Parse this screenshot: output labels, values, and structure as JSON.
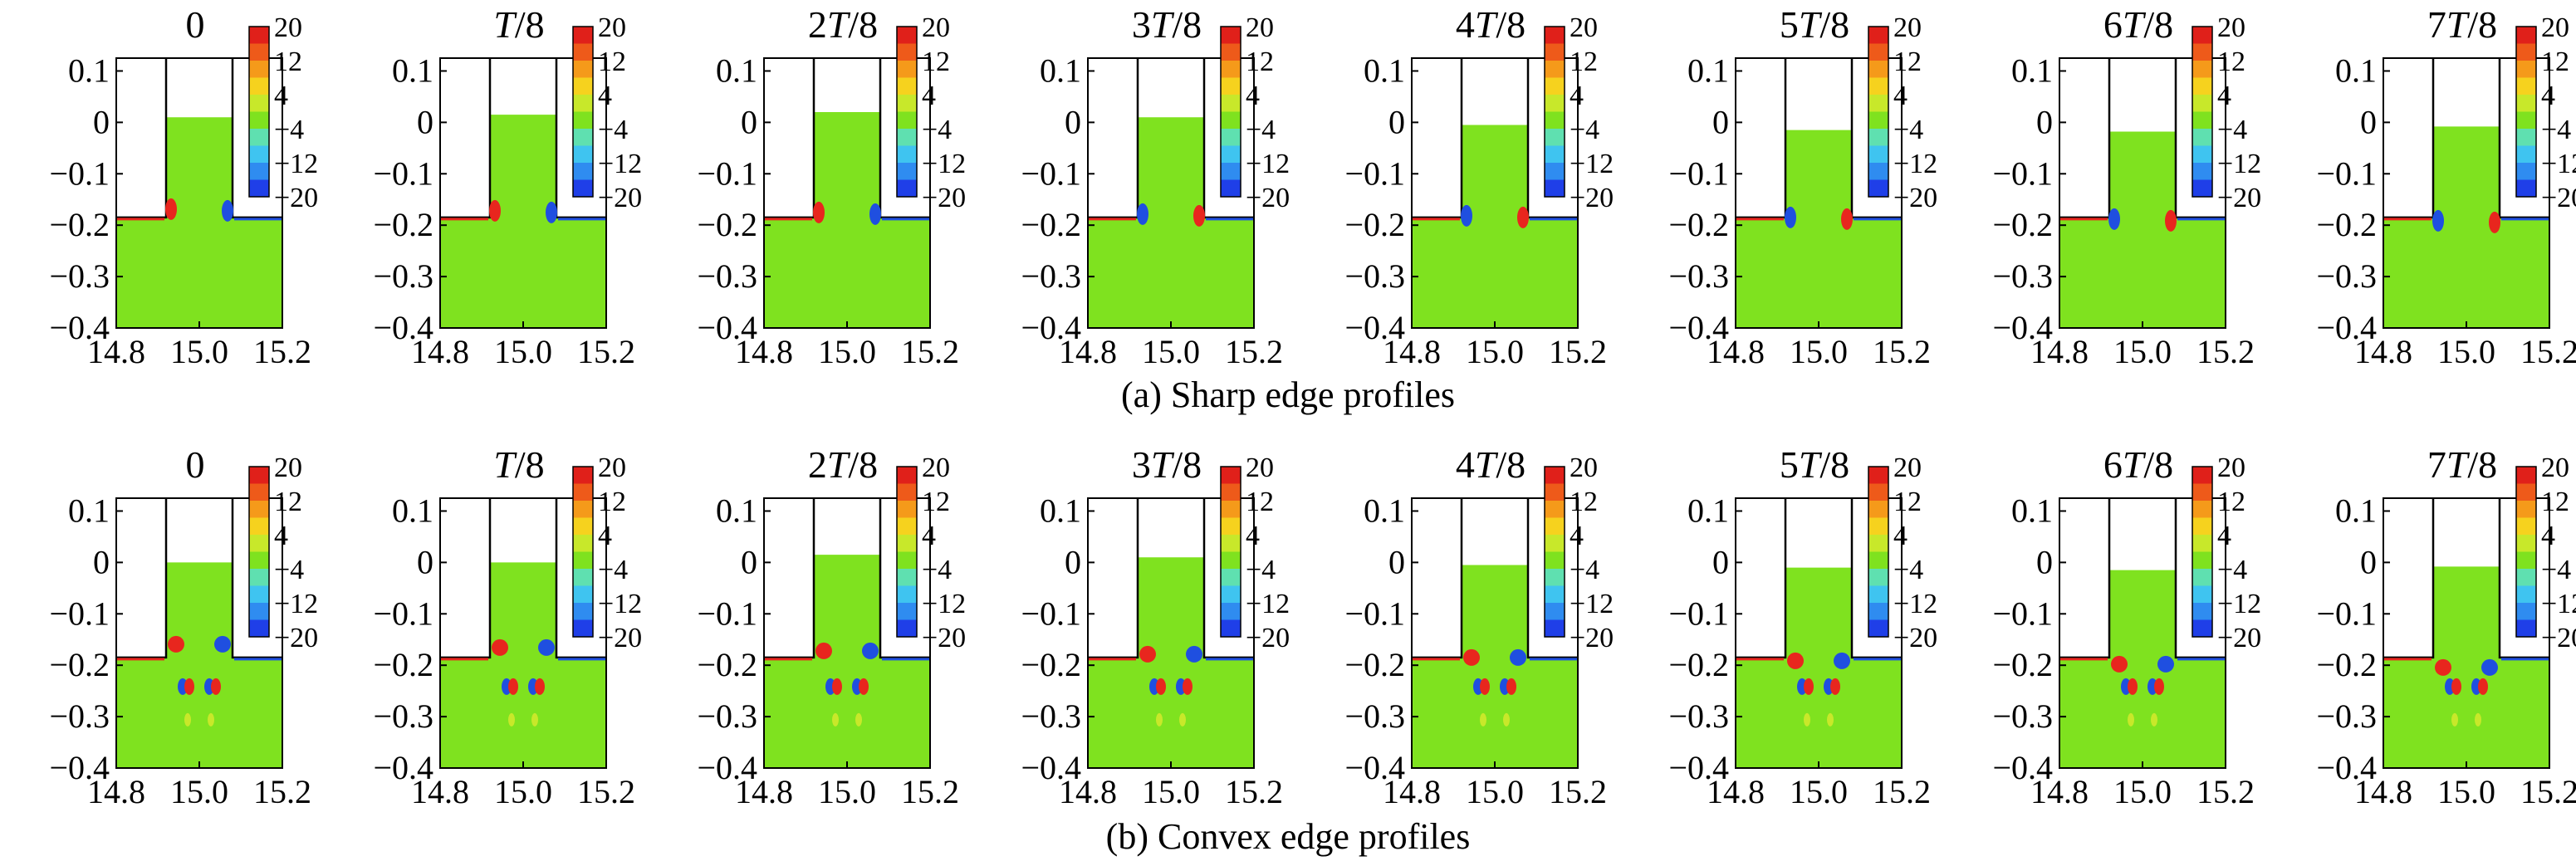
{
  "figure": {
    "colors": {
      "background_field": "#7fe21f",
      "wall": "#000000",
      "positive_vortex": "#e8261e",
      "negative_vortex": "#1f4fe0",
      "cbar": [
        "#1f3fe8",
        "#2f8cf0",
        "#3fc4f0",
        "#5fe0b0",
        "#7fe21f",
        "#c8e82a",
        "#f6d21e",
        "#f59a1a",
        "#ee5a1a",
        "#e0201a"
      ]
    },
    "x_ticks": [
      "14.8",
      "15.0",
      "15.2"
    ],
    "y_ticks": [
      "0.1",
      "0",
      "−0.1",
      "−0.2",
      "−0.3",
      "−0.4"
    ],
    "colorbar_labels": [
      "20",
      "12",
      "4",
      "−4",
      "−12",
      "−20"
    ],
    "rows": [
      {
        "caption": "(a) Sharp edge profiles",
        "profile": "sharp",
        "panels": [
          {
            "pre": "",
            "T": "",
            "suf": "0",
            "level": 0.01
          },
          {
            "pre": "",
            "T": "T",
            "suf": "/8",
            "level": 0.015
          },
          {
            "pre": "2",
            "T": "T",
            "suf": "/8",
            "level": 0.02
          },
          {
            "pre": "3",
            "T": "T",
            "suf": "/8",
            "level": 0.01
          },
          {
            "pre": "4",
            "T": "T",
            "suf": "/8",
            "level": -0.005
          },
          {
            "pre": "5",
            "T": "T",
            "suf": "/8",
            "level": -0.015
          },
          {
            "pre": "6",
            "T": "T",
            "suf": "/8",
            "level": -0.018
          },
          {
            "pre": "7",
            "T": "T",
            "suf": "/8",
            "level": -0.008
          }
        ]
      },
      {
        "caption": "(b) Convex edge profiles",
        "profile": "convex",
        "panels": [
          {
            "pre": "",
            "T": "",
            "suf": "0",
            "level": 0.0
          },
          {
            "pre": "",
            "T": "T",
            "suf": "/8",
            "level": 0.0
          },
          {
            "pre": "2",
            "T": "T",
            "suf": "/8",
            "level": 0.015
          },
          {
            "pre": "3",
            "T": "T",
            "suf": "/8",
            "level": 0.01
          },
          {
            "pre": "4",
            "T": "T",
            "suf": "/8",
            "level": -0.005
          },
          {
            "pre": "5",
            "T": "T",
            "suf": "/8",
            "level": -0.01
          },
          {
            "pre": "6",
            "T": "T",
            "suf": "/8",
            "level": -0.015
          },
          {
            "pre": "7",
            "T": "T",
            "suf": "/8",
            "level": -0.008
          }
        ]
      }
    ]
  }
}
